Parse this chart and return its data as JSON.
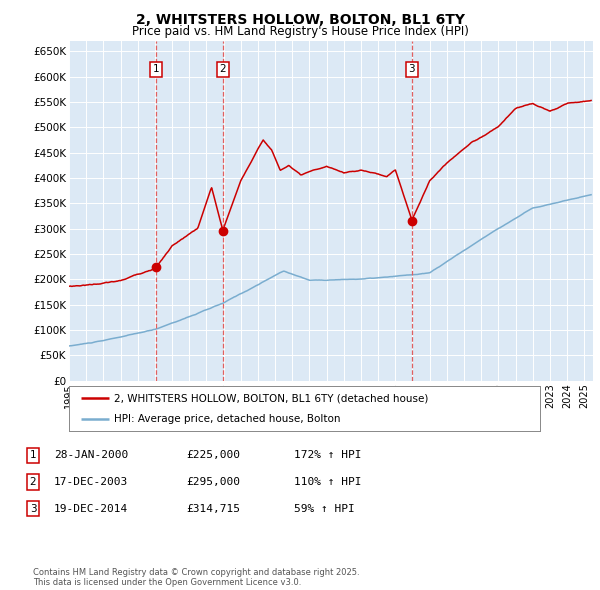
{
  "title": "2, WHITSTERS HOLLOW, BOLTON, BL1 6TY",
  "subtitle": "Price paid vs. HM Land Registry's House Price Index (HPI)",
  "plot_bg_color": "#dce9f5",
  "grid_color": "#ffffff",
  "red_line_color": "#cc0000",
  "blue_line_color": "#7aadcf",
  "sale_marker_color": "#cc0000",
  "dashed_line_color": "#e06060",
  "ytick_labels": [
    "£0",
    "£50K",
    "£100K",
    "£150K",
    "£200K",
    "£250K",
    "£300K",
    "£350K",
    "£400K",
    "£450K",
    "£500K",
    "£550K",
    "£600K",
    "£650K"
  ],
  "ytick_values": [
    0,
    50000,
    100000,
    150000,
    200000,
    250000,
    300000,
    350000,
    400000,
    450000,
    500000,
    550000,
    600000,
    650000
  ],
  "sale1_date": 2000.07,
  "sale1_price": 225000,
  "sale1_label": "28-JAN-2000",
  "sale1_price_str": "£225,000",
  "sale1_pct": "172% ↑ HPI",
  "sale2_date": 2003.96,
  "sale2_price": 295000,
  "sale2_label": "17-DEC-2003",
  "sale2_price_str": "£295,000",
  "sale2_pct": "110% ↑ HPI",
  "sale3_date": 2014.96,
  "sale3_price": 314715,
  "sale3_label": "19-DEC-2014",
  "sale3_price_str": "£314,715",
  "sale3_pct": "59% ↑ HPI",
  "legend_red": "2, WHITSTERS HOLLOW, BOLTON, BL1 6TY (detached house)",
  "legend_blue": "HPI: Average price, detached house, Bolton",
  "footnote": "Contains HM Land Registry data © Crown copyright and database right 2025.\nThis data is licensed under the Open Government Licence v3.0.",
  "xmin": 1995.0,
  "xmax": 2025.5
}
